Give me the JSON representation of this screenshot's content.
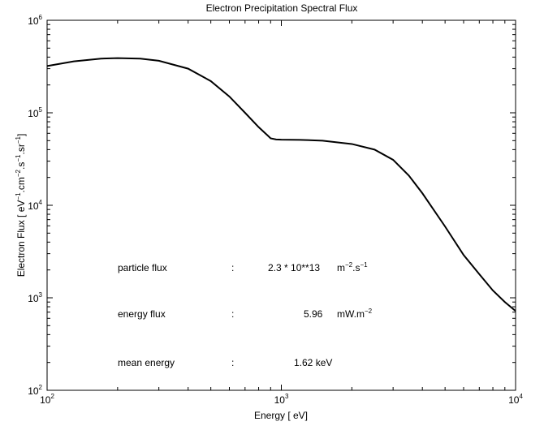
{
  "chart_data": {
    "type": "line",
    "title": "Electron Precipitation Spectral Flux",
    "xlabel": "Energy [ eV]",
    "ylabel": "Electron Flux [ eV⁻¹.cm⁻².s⁻¹.sr⁻¹]",
    "ylabel_parts": [
      "Electron Flux [ eV",
      "−1",
      ".cm",
      "−2",
      ".s",
      "−1",
      ".sr",
      "−1",
      "]"
    ],
    "xscale": "log",
    "yscale": "log",
    "xlim": [
      100,
      10000
    ],
    "ylim": [
      100,
      1000000
    ],
    "grid": false,
    "x_ticks": [
      {
        "base": "10",
        "exp": "2"
      },
      {
        "base": "10",
        "exp": "3"
      },
      {
        "base": "10",
        "exp": "4"
      }
    ],
    "y_ticks": [
      {
        "base": "10",
        "exp": "2"
      },
      {
        "base": "10",
        "exp": "3"
      },
      {
        "base": "10",
        "exp": "4"
      },
      {
        "base": "10",
        "exp": "5"
      },
      {
        "base": "10",
        "exp": "6"
      }
    ],
    "series": [
      {
        "x": [
          100,
          130,
          170,
          200,
          250,
          300,
          400,
          500,
          600,
          700,
          800,
          880,
          900,
          950,
          1000,
          1200,
          1500,
          2000,
          2500,
          3000,
          3500,
          4000,
          5000,
          6000,
          7000,
          8000,
          9000,
          10000
        ],
        "y": [
          320000,
          360000,
          385000,
          390000,
          385000,
          365000,
          300000,
          220000,
          150000,
          100000,
          70000,
          56000,
          53000,
          51500,
          51200,
          51000,
          50000,
          46000,
          40000,
          31000,
          21000,
          13500,
          5900,
          2900,
          1800,
          1200,
          900,
          720
        ]
      }
    ],
    "annotations": [
      {
        "label": "particle flux",
        "sep": ":",
        "value": "2.3 * 10**13",
        "unit": "m",
        "unit_exp1": "−2",
        "unit_mid": ".s",
        "unit_exp2": "−1"
      },
      {
        "label": "energy flux",
        "sep": ":",
        "value": "5.96",
        "unit": "mW.m",
        "unit_exp1": "−2"
      },
      {
        "label": "mean energy",
        "sep": ":",
        "value": "1.62 keV"
      }
    ]
  }
}
